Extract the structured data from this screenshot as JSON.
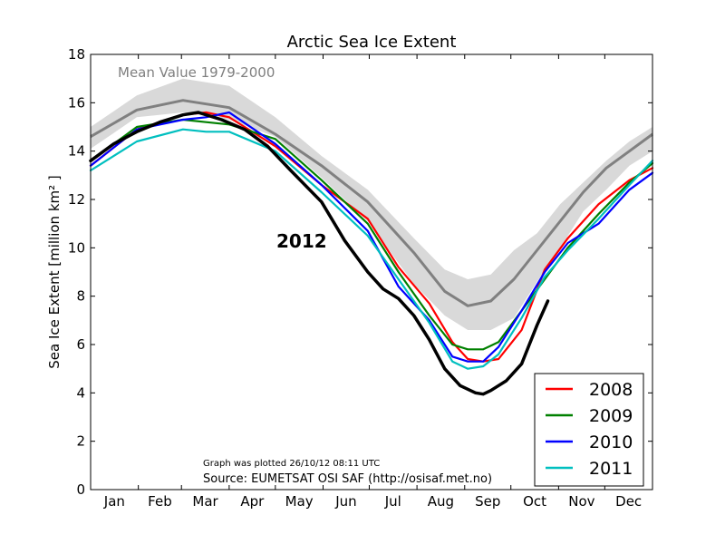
{
  "chart_data": {
    "type": "line",
    "title": "Arctic Sea Ice Extent",
    "xlabel": "",
    "ylabel": "Sea Ice Extent [million km² ]",
    "ylim": [
      0,
      18
    ],
    "yticks": [
      0,
      2,
      4,
      6,
      8,
      10,
      12,
      14,
      16,
      18
    ],
    "xlim": [
      0,
      365
    ],
    "month_labels": [
      "Jan",
      "Feb",
      "Mar",
      "Apr",
      "May",
      "Jun",
      "Jul",
      "Aug",
      "Sep",
      "Oct",
      "Nov",
      "Dec"
    ],
    "grid": false,
    "legend_position": "lower-right",
    "annotations": {
      "mean_label": "Mean Value 1979-2000",
      "year_label": "2012",
      "plotted_note": "Graph was plotted 26/10/12 08:11 UTC",
      "source_note": "Source: EUMETSAT OSI SAF (http://osisaf.met.no)"
    },
    "mean_band": {
      "x": [
        0,
        30,
        60,
        90,
        120,
        150,
        180,
        210,
        230,
        245,
        260,
        275,
        290,
        305,
        320,
        335,
        350,
        365
      ],
      "upper": [
        15.0,
        16.3,
        17.0,
        16.7,
        15.4,
        13.8,
        12.4,
        10.4,
        9.1,
        8.7,
        8.9,
        9.9,
        10.6,
        11.8,
        12.7,
        13.6,
        14.4,
        15.0
      ],
      "lower": [
        14.1,
        15.4,
        15.6,
        15.3,
        14.6,
        12.9,
        11.1,
        8.5,
        7.2,
        6.6,
        6.6,
        7.1,
        8.6,
        10.0,
        11.5,
        12.4,
        13.4,
        14.0
      ]
    },
    "mean_series": {
      "name": "Mean Value 1979-2000",
      "color": "#808080",
      "x": [
        0,
        30,
        60,
        90,
        120,
        150,
        180,
        210,
        230,
        245,
        260,
        275,
        290,
        305,
        320,
        335,
        350,
        365
      ],
      "values": [
        14.6,
        15.7,
        16.1,
        15.8,
        14.7,
        13.4,
        11.9,
        9.8,
        8.2,
        7.6,
        7.8,
        8.7,
        9.9,
        11.1,
        12.3,
        13.3,
        14.0,
        14.7
      ]
    },
    "series": [
      {
        "name": "2008",
        "color": "#ff0000",
        "x": [
          0,
          30,
          60,
          75,
          90,
          120,
          150,
          180,
          200,
          220,
          235,
          245,
          255,
          265,
          280,
          295,
          310,
          330,
          350,
          365
        ],
        "values": [
          13.4,
          14.9,
          15.5,
          15.6,
          15.4,
          14.2,
          12.6,
          11.2,
          9.2,
          7.7,
          6.1,
          5.4,
          5.3,
          5.4,
          6.6,
          9.1,
          10.4,
          11.8,
          12.8,
          13.3
        ]
      },
      {
        "name": "2009",
        "color": "#008000",
        "x": [
          0,
          30,
          60,
          75,
          90,
          120,
          150,
          180,
          200,
          220,
          235,
          245,
          255,
          265,
          280,
          295,
          310,
          330,
          350,
          365
        ],
        "values": [
          13.6,
          15.0,
          15.3,
          15.2,
          15.1,
          14.5,
          12.8,
          11.0,
          9.0,
          7.2,
          6.0,
          5.8,
          5.8,
          6.1,
          7.4,
          8.7,
          10.0,
          11.4,
          12.7,
          13.5
        ]
      },
      {
        "name": "2010",
        "color": "#0000ff",
        "x": [
          0,
          30,
          60,
          75,
          90,
          120,
          150,
          180,
          200,
          220,
          235,
          245,
          255,
          265,
          280,
          295,
          310,
          330,
          350,
          365
        ],
        "values": [
          13.4,
          14.9,
          15.3,
          15.4,
          15.6,
          14.3,
          12.6,
          10.7,
          8.4,
          7.0,
          5.5,
          5.3,
          5.3,
          5.9,
          7.4,
          9.0,
          10.2,
          11.0,
          12.4,
          13.1
        ]
      },
      {
        "name": "2011",
        "color": "#00bfbf",
        "x": [
          0,
          30,
          60,
          75,
          90,
          120,
          150,
          180,
          200,
          220,
          235,
          245,
          255,
          265,
          280,
          295,
          310,
          330,
          350,
          365
        ],
        "values": [
          13.2,
          14.4,
          14.9,
          14.8,
          14.8,
          14.0,
          12.3,
          10.5,
          8.7,
          6.9,
          5.3,
          5.0,
          5.1,
          5.6,
          7.1,
          8.8,
          9.9,
          11.2,
          12.6,
          13.6
        ]
      },
      {
        "name": "2012",
        "color": "#000000",
        "in_legend": false,
        "x": [
          0,
          15,
          30,
          45,
          60,
          70,
          85,
          100,
          115,
          130,
          150,
          165,
          180,
          190,
          200,
          210,
          220,
          230,
          240,
          250,
          255,
          260,
          270,
          280,
          290,
          297
        ],
        "values": [
          13.6,
          14.3,
          14.8,
          15.2,
          15.5,
          15.6,
          15.3,
          14.9,
          14.2,
          13.2,
          11.9,
          10.3,
          9.0,
          8.3,
          7.9,
          7.2,
          6.2,
          5.0,
          4.3,
          4.0,
          3.95,
          4.1,
          4.5,
          5.2,
          6.8,
          7.8
        ]
      }
    ]
  }
}
